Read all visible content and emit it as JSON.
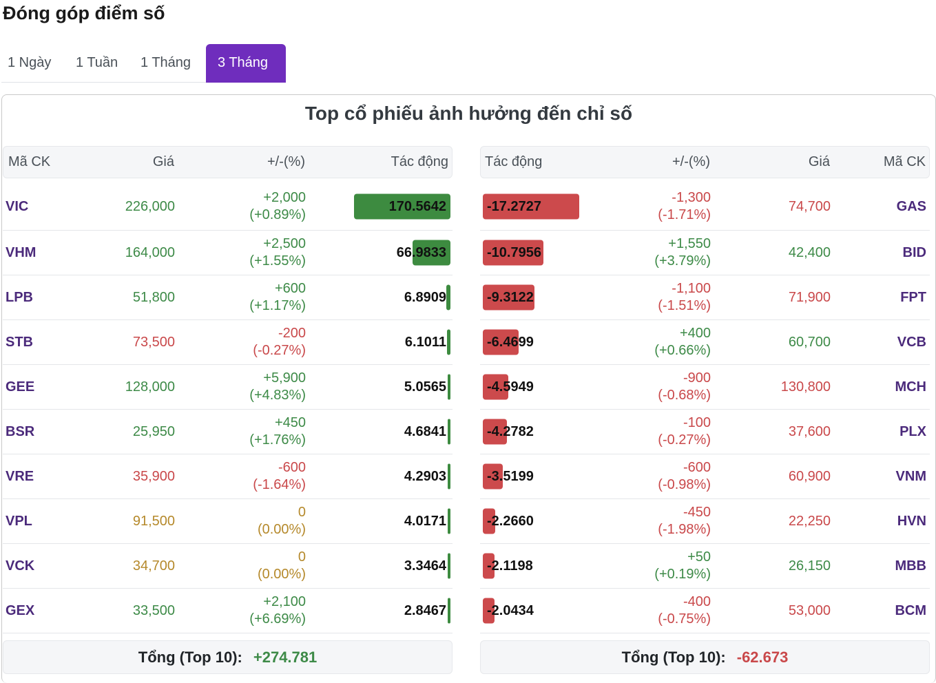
{
  "page": {
    "title": "Đóng góp điểm số"
  },
  "tabs": [
    {
      "label": "1 Ngày",
      "active": false
    },
    {
      "label": "1 Tuần",
      "active": false
    },
    {
      "label": "1 Tháng",
      "active": false
    },
    {
      "label": "3 Tháng",
      "active": true
    }
  ],
  "panel": {
    "title": "Top cổ phiếu ảnh hưởng đến chỉ số"
  },
  "gainers": {
    "headers": {
      "code": "Mã CK",
      "price": "Giá",
      "change": "+/-(%)",
      "impact": "Tác động"
    },
    "rows": [
      {
        "code": "VIC",
        "price": "226,000",
        "change": "+2,000",
        "pct": "(+0.89%)",
        "impact": "170.5642",
        "impact_value": 170.5642,
        "trend": "up"
      },
      {
        "code": "VHM",
        "price": "164,000",
        "change": "+2,500",
        "pct": "(+1.55%)",
        "impact": "66.9833",
        "impact_value": 66.9833,
        "trend": "up"
      },
      {
        "code": "LPB",
        "price": "51,800",
        "change": "+600",
        "pct": "(+1.17%)",
        "impact": "6.8909",
        "impact_value": 6.8909,
        "trend": "up"
      },
      {
        "code": "STB",
        "price": "73,500",
        "change": "-200",
        "pct": "(-0.27%)",
        "impact": "6.1011",
        "impact_value": 6.1011,
        "trend": "down"
      },
      {
        "code": "GEE",
        "price": "128,000",
        "change": "+5,900",
        "pct": "(+4.83%)",
        "impact": "5.0565",
        "impact_value": 5.0565,
        "trend": "up"
      },
      {
        "code": "BSR",
        "price": "25,950",
        "change": "+450",
        "pct": "(+1.76%)",
        "impact": "4.6841",
        "impact_value": 4.6841,
        "trend": "up"
      },
      {
        "code": "VRE",
        "price": "35,900",
        "change": "-600",
        "pct": "(-1.64%)",
        "impact": "4.2903",
        "impact_value": 4.2903,
        "trend": "down"
      },
      {
        "code": "VPL",
        "price": "91,500",
        "change": "0",
        "pct": "(0.00%)",
        "impact": "4.0171",
        "impact_value": 4.0171,
        "trend": "flat"
      },
      {
        "code": "VCK",
        "price": "34,700",
        "change": "0",
        "pct": "(0.00%)",
        "impact": "3.3464",
        "impact_value": 3.3464,
        "trend": "flat"
      },
      {
        "code": "GEX",
        "price": "33,500",
        "change": "+2,100",
        "pct": "(+6.69%)",
        "impact": "2.8467",
        "impact_value": 2.8467,
        "trend": "up"
      }
    ],
    "total_label": "Tổng (Top 10):",
    "total_value": "+274.781"
  },
  "losers": {
    "headers": {
      "impact": "Tác động",
      "change": "+/-(%)",
      "price": "Giá",
      "code": "Mã CK"
    },
    "rows": [
      {
        "code": "GAS",
        "price": "74,700",
        "change": "-1,300",
        "pct": "(-1.71%)",
        "impact": "-17.2727",
        "impact_value": -17.2727,
        "trend": "down"
      },
      {
        "code": "BID",
        "price": "42,400",
        "change": "+1,550",
        "pct": "(+3.79%)",
        "impact": "-10.7956",
        "impact_value": -10.7956,
        "trend": "up"
      },
      {
        "code": "FPT",
        "price": "71,900",
        "change": "-1,100",
        "pct": "(-1.51%)",
        "impact": "-9.3122",
        "impact_value": -9.3122,
        "trend": "down"
      },
      {
        "code": "VCB",
        "price": "60,700",
        "change": "+400",
        "pct": "(+0.66%)",
        "impact": "-6.4699",
        "impact_value": -6.4699,
        "trend": "up"
      },
      {
        "code": "MCH",
        "price": "130,800",
        "change": "-900",
        "pct": "(-0.68%)",
        "impact": "-4.5949",
        "impact_value": -4.5949,
        "trend": "down"
      },
      {
        "code": "PLX",
        "price": "37,600",
        "change": "-100",
        "pct": "(-0.27%)",
        "impact": "-4.2782",
        "impact_value": -4.2782,
        "trend": "down"
      },
      {
        "code": "VNM",
        "price": "60,900",
        "change": "-600",
        "pct": "(-0.98%)",
        "impact": "-3.5199",
        "impact_value": -3.5199,
        "trend": "down"
      },
      {
        "code": "HVN",
        "price": "22,250",
        "change": "-450",
        "pct": "(-1.98%)",
        "impact": "-2.2660",
        "impact_value": -2.266,
        "trend": "down"
      },
      {
        "code": "MBB",
        "price": "26,150",
        "change": "+50",
        "pct": "(+0.19%)",
        "impact": "-2.1198",
        "impact_value": -2.1198,
        "trend": "up"
      },
      {
        "code": "BCM",
        "price": "53,000",
        "change": "-400",
        "pct": "(-0.75%)",
        "impact": "-2.0434",
        "impact_value": -2.0434,
        "trend": "down"
      }
    ],
    "total_label": "Tổng (Top 10):",
    "total_value": "-62.673"
  },
  "colors": {
    "accent": "#6f2dbd",
    "positive": "#3d8a47",
    "negative": "#c9484a",
    "neutral": "#b5892b",
    "bar_positive": "#3d8b40",
    "bar_negative": "#cc4a4c",
    "code_text": "#4b2a7b"
  }
}
